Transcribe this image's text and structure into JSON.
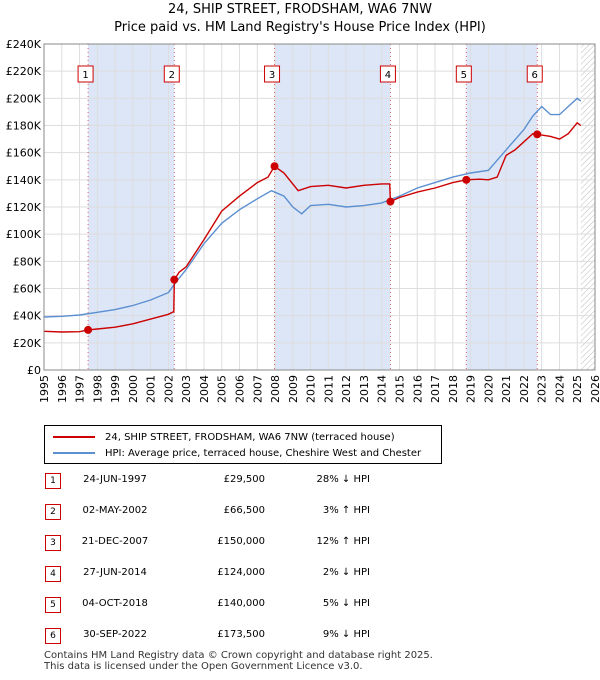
{
  "title_line1": "24, SHIP STREET, FRODSHAM, WA6 7NW",
  "title_line2": "Price paid vs. HM Land Registry's House Price Index (HPI)",
  "chart_data": {
    "type": "line",
    "xlim": [
      1995,
      2026
    ],
    "ylim": [
      0,
      240000
    ],
    "y_ticks": [
      0,
      20000,
      40000,
      60000,
      80000,
      100000,
      120000,
      140000,
      160000,
      180000,
      200000,
      220000,
      240000
    ],
    "y_tick_labels": [
      "£0",
      "£20K",
      "£40K",
      "£60K",
      "£80K",
      "£100K",
      "£120K",
      "£140K",
      "£160K",
      "£180K",
      "£200K",
      "£220K",
      "£240K"
    ],
    "x_ticks": [
      1995,
      1996,
      1997,
      1998,
      1999,
      2000,
      2001,
      2002,
      2003,
      2004,
      2005,
      2006,
      2007,
      2008,
      2009,
      2010,
      2011,
      2012,
      2013,
      2014,
      2015,
      2016,
      2017,
      2018,
      2019,
      2020,
      2021,
      2022,
      2023,
      2024,
      2025,
      2026
    ],
    "grid": true,
    "series": [
      {
        "name": "24, SHIP STREET, FRODSHAM, WA6 7NW (terraced house)",
        "color": "#cc0000",
        "points": [
          [
            1995.0,
            28500
          ],
          [
            1996.0,
            28000
          ],
          [
            1997.0,
            28200
          ],
          [
            1997.48,
            29500
          ],
          [
            1998.0,
            30200
          ],
          [
            1999.0,
            31500
          ],
          [
            2000.0,
            34000
          ],
          [
            2001.0,
            37500
          ],
          [
            2002.0,
            41000
          ],
          [
            2002.3,
            43000
          ],
          [
            2002.33,
            66500
          ],
          [
            2002.6,
            72000
          ],
          [
            2003.0,
            76000
          ],
          [
            2004.0,
            96000
          ],
          [
            2005.0,
            117000
          ],
          [
            2006.0,
            128000
          ],
          [
            2007.0,
            138000
          ],
          [
            2007.6,
            142000
          ],
          [
            2007.97,
            150000
          ],
          [
            2008.5,
            145000
          ],
          [
            2009.3,
            132000
          ],
          [
            2010.0,
            135000
          ],
          [
            2011.0,
            136000
          ],
          [
            2012.0,
            134000
          ],
          [
            2013.0,
            136000
          ],
          [
            2014.0,
            137000
          ],
          [
            2014.45,
            137000
          ],
          [
            2014.49,
            124000
          ],
          [
            2015.0,
            127000
          ],
          [
            2016.0,
            131000
          ],
          [
            2017.0,
            134000
          ],
          [
            2018.0,
            138000
          ],
          [
            2018.76,
            140000
          ],
          [
            2019.5,
            140500
          ],
          [
            2020.0,
            140000
          ],
          [
            2020.5,
            142000
          ],
          [
            2021.0,
            158000
          ],
          [
            2021.5,
            162000
          ],
          [
            2022.0,
            168000
          ],
          [
            2022.5,
            174000
          ],
          [
            2022.75,
            173500
          ],
          [
            2023.5,
            172000
          ],
          [
            2024.0,
            170000
          ],
          [
            2024.5,
            174000
          ],
          [
            2025.0,
            182000
          ],
          [
            2025.2,
            180000
          ]
        ]
      },
      {
        "name": "HPI: Average price, terraced house, Cheshire West and Chester",
        "color": "#5b8fd0",
        "points": [
          [
            1995.0,
            39000
          ],
          [
            1996.0,
            39500
          ],
          [
            1997.0,
            40500
          ],
          [
            1998.0,
            42500
          ],
          [
            1999.0,
            44500
          ],
          [
            2000.0,
            47500
          ],
          [
            2001.0,
            51500
          ],
          [
            2002.0,
            57000
          ],
          [
            2002.5,
            66000
          ],
          [
            2003.0,
            74000
          ],
          [
            2004.0,
            93000
          ],
          [
            2005.0,
            108000
          ],
          [
            2006.0,
            118000
          ],
          [
            2007.0,
            126000
          ],
          [
            2007.8,
            132000
          ],
          [
            2008.5,
            128000
          ],
          [
            2009.0,
            120000
          ],
          [
            2009.5,
            115000
          ],
          [
            2010.0,
            121000
          ],
          [
            2011.0,
            122000
          ],
          [
            2012.0,
            120000
          ],
          [
            2013.0,
            121000
          ],
          [
            2014.0,
            123000
          ],
          [
            2015.0,
            128000
          ],
          [
            2016.0,
            134000
          ],
          [
            2017.0,
            138000
          ],
          [
            2018.0,
            142000
          ],
          [
            2019.0,
            145000
          ],
          [
            2020.0,
            147000
          ],
          [
            2021.0,
            162000
          ],
          [
            2022.0,
            177000
          ],
          [
            2022.5,
            187000
          ],
          [
            2023.0,
            194000
          ],
          [
            2023.5,
            188000
          ],
          [
            2024.0,
            188000
          ],
          [
            2024.5,
            194000
          ],
          [
            2025.0,
            200000
          ],
          [
            2025.2,
            198000
          ]
        ]
      }
    ],
    "sales": [
      {
        "n": "1",
        "year": 1997.48,
        "price": 29500
      },
      {
        "n": "2",
        "year": 2002.33,
        "price": 66500
      },
      {
        "n": "3",
        "year": 2007.97,
        "price": 150000
      },
      {
        "n": "4",
        "year": 2014.49,
        "price": 124000
      },
      {
        "n": "5",
        "year": 2018.76,
        "price": 140000
      },
      {
        "n": "6",
        "year": 2022.75,
        "price": 173500
      }
    ],
    "shaded_ranges": [
      [
        1997.48,
        2002.33
      ],
      [
        2007.97,
        2014.49
      ],
      [
        2018.76,
        2022.75
      ]
    ],
    "forecast_start": 2025.2
  },
  "legend": {
    "price_label": "24, SHIP STREET, FRODSHAM, WA6 7NW (terraced house)",
    "hpi_label": "HPI: Average price, terraced house, Cheshire West and Chester"
  },
  "sales_table": [
    {
      "n": "1",
      "date": "24-JUN-1997",
      "price": "£29,500",
      "hpi": "28% ↓ HPI"
    },
    {
      "n": "2",
      "date": "02-MAY-2002",
      "price": "£66,500",
      "hpi": "3% ↑ HPI"
    },
    {
      "n": "3",
      "date": "21-DEC-2007",
      "price": "£150,000",
      "hpi": "12% ↑ HPI"
    },
    {
      "n": "4",
      "date": "27-JUN-2014",
      "price": "£124,000",
      "hpi": "2% ↓ HPI"
    },
    {
      "n": "5",
      "date": "04-OCT-2018",
      "price": "£140,000",
      "hpi": "5% ↓ HPI"
    },
    {
      "n": "6",
      "date": "30-SEP-2022",
      "price": "£173,500",
      "hpi": "9% ↓ HPI"
    }
  ],
  "footer_line1": "Contains HM Land Registry data © Crown copyright and database right 2025.",
  "footer_line2": "This data is licensed under the Open Government Licence v3.0."
}
